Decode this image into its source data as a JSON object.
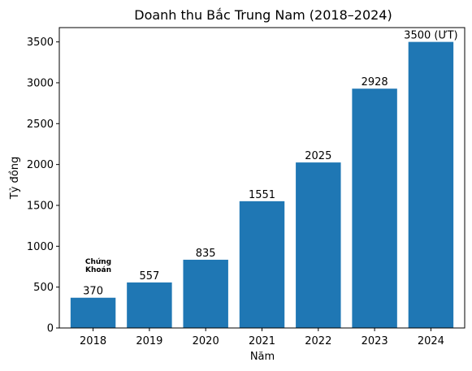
{
  "chart_data": {
    "type": "bar",
    "title": "Doanh thu Bắc Trung Nam (2018–2024)",
    "xlabel": "Năm",
    "ylabel": "Tỷ đồng",
    "categories": [
      "2018",
      "2019",
      "2020",
      "2021",
      "2022",
      "2023",
      "2024"
    ],
    "values": [
      370,
      557,
      835,
      1551,
      2025,
      2928,
      3500
    ],
    "data_labels": [
      "370",
      "557",
      "835",
      "1551",
      "2025",
      "2928",
      "3500 (ƯT)"
    ],
    "ylim": [
      0,
      3675
    ],
    "yticks": [
      0,
      500,
      1000,
      1500,
      2000,
      2500,
      3000,
      3500
    ],
    "grid": false,
    "bar_color": "#1f77b4",
    "watermark": {
      "text_lines": [
        "Chứng",
        "Khoán"
      ],
      "color": "#1a7a1a"
    }
  }
}
